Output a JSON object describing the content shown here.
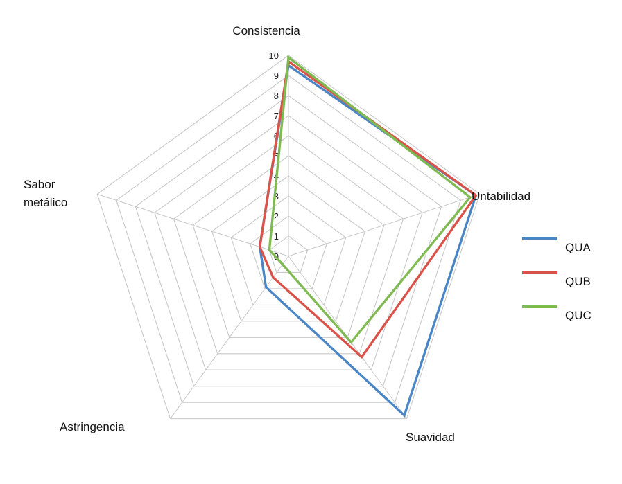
{
  "chart_data": {
    "type": "radar",
    "axes": [
      "Consistencia",
      "Untabilidad",
      "Suavidad",
      "Astringencia",
      "Sabor metálico"
    ],
    "axis_label_lines": [
      [
        "Consistencia"
      ],
      [
        "Untabilidad"
      ],
      [
        "Suavidad"
      ],
      [
        "Astringencia"
      ],
      [
        "Sabor",
        "metálico"
      ]
    ],
    "rlim": [
      0,
      10
    ],
    "ticks": [
      "0",
      "1",
      "2",
      "3",
      "4",
      "5",
      "6",
      "7",
      "8",
      "9",
      "10"
    ],
    "grid": true,
    "legend_position": "right",
    "series": [
      {
        "name": "QUA",
        "color": "#4a86c5",
        "values": [
          9.5,
          9.8,
          9.8,
          1.9,
          1.5
        ]
      },
      {
        "name": "QUB",
        "color": "#d9534a",
        "values": [
          9.7,
          9.8,
          6.2,
          1.3,
          1.5
        ]
      },
      {
        "name": "QUC",
        "color": "#7fba52",
        "values": [
          9.9,
          9.5,
          5.3,
          0.5,
          1.0
        ]
      }
    ]
  }
}
